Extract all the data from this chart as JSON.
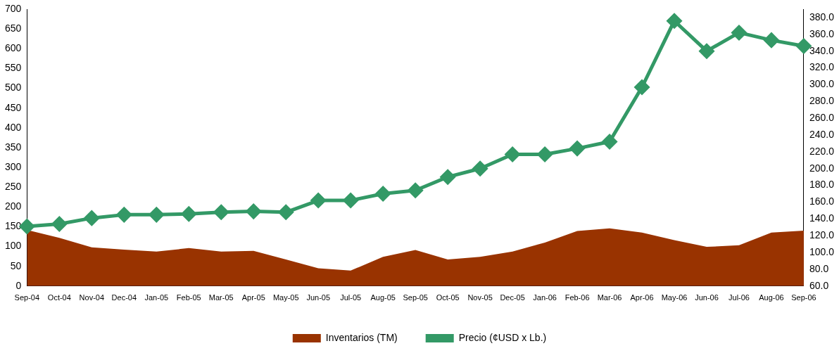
{
  "chart_data": {
    "type": "area",
    "categories": [
      "Sep-04",
      "Oct-04",
      "Nov-04",
      "Dec-04",
      "Jan-05",
      "Feb-05",
      "Mar-05",
      "Apr-05",
      "May-05",
      "Jun-05",
      "Jul-05",
      "Aug-05",
      "Sep-05",
      "Oct-05",
      "Nov-05",
      "Dec-05",
      "Jan-06",
      "Feb-06",
      "Mar-06",
      "Apr-06",
      "May-06",
      "Jun-06",
      "Jul-06",
      "Aug-06",
      "Sep-06"
    ],
    "series": [
      {
        "name": "Inventarios (TM)",
        "color": "#993300",
        "values": [
          142,
          122,
          98,
          92,
          87,
          96,
          87,
          89,
          67,
          45,
          39,
          74,
          91,
          67,
          74,
          87,
          110,
          139,
          146,
          135,
          116,
          99,
          103,
          135,
          140
        ]
      },
      {
        "name": "Precio (¢USD x Lb.)",
        "type": "line",
        "axis": "y2",
        "color": "#339966",
        "marker": "diamond",
        "values": [
          131,
          134,
          141,
          145,
          145,
          146,
          148,
          149,
          148,
          162,
          162,
          170,
          174,
          190,
          200,
          217,
          217,
          224,
          232,
          297,
          376,
          340,
          362,
          353,
          346
        ]
      }
    ],
    "ylim": [
      0,
      700
    ],
    "yticks": [
      0,
      50,
      100,
      150,
      200,
      250,
      300,
      350,
      400,
      450,
      500,
      550,
      600,
      650,
      700
    ],
    "y2lim": [
      60,
      390
    ],
    "y2ticks": [
      {
        "value": 60,
        "label": "60.0"
      },
      {
        "value": 80,
        "label": "80.0"
      },
      {
        "value": 100,
        "label": "100.0"
      },
      {
        "value": 120,
        "label": "120.0"
      },
      {
        "value": 140,
        "label": "140.0"
      },
      {
        "value": 160,
        "label": "160.0"
      },
      {
        "value": 180,
        "label": "180.0"
      },
      {
        "value": 200,
        "label": "200.0"
      },
      {
        "value": 220,
        "label": "220.0"
      },
      {
        "value": 240,
        "label": "240.0"
      },
      {
        "value": 260,
        "label": "260.0"
      },
      {
        "value": 280,
        "label": "280.0"
      },
      {
        "value": 300,
        "label": "300.0"
      },
      {
        "value": 320,
        "label": "320.0"
      },
      {
        "value": 340,
        "label": "340.0"
      },
      {
        "value": 360,
        "label": "360.0"
      },
      {
        "value": 380,
        "label": "380.0"
      }
    ],
    "legend": "bottom",
    "grid": false
  }
}
